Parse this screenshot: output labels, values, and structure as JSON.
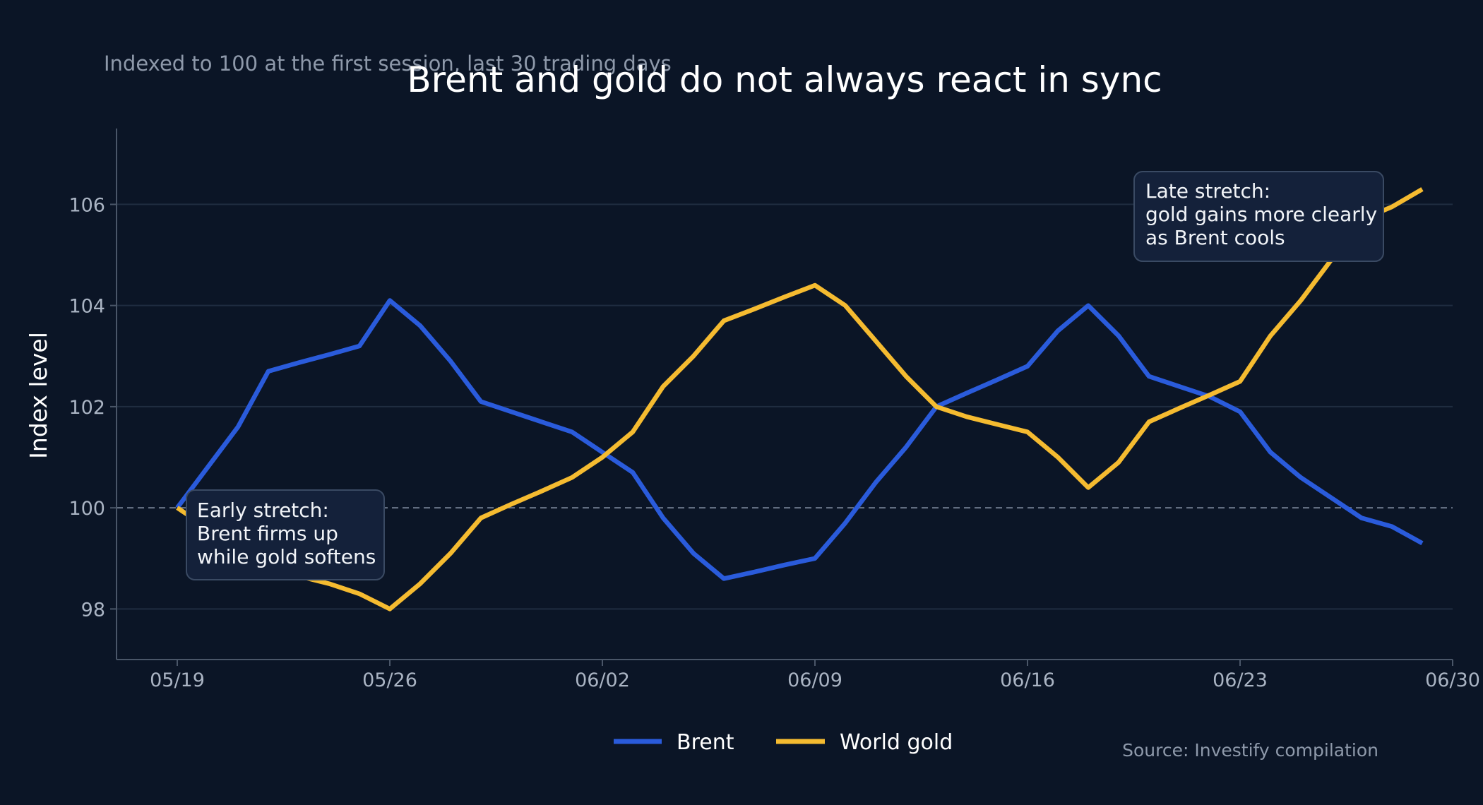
{
  "chart_data": {
    "type": "line",
    "title": "Brent and gold do not always react in sync",
    "subtitle": "Indexed to 100 at the first session, last 30 trading days",
    "ylabel": "Index level",
    "xlabel": "",
    "source": "Source: Investify compilation",
    "ylim": [
      97,
      107.5
    ],
    "xlim": [
      "2025-05-17",
      "2025-06-30"
    ],
    "y_ticks": [
      98,
      100,
      102,
      104,
      106
    ],
    "x_ticks": [
      {
        "date": "2025-05-19",
        "label": "05/19"
      },
      {
        "date": "2025-05-26",
        "label": "05/26"
      },
      {
        "date": "2025-06-02",
        "label": "06/02"
      },
      {
        "date": "2025-06-09",
        "label": "06/09"
      },
      {
        "date": "2025-06-16",
        "label": "06/16"
      },
      {
        "date": "2025-06-23",
        "label": "06/23"
      },
      {
        "date": "2025-06-30",
        "label": "06/30"
      }
    ],
    "reference_line": 100,
    "grid": "horizontal",
    "legend_position": "bottom-center",
    "x": [
      "2025-05-19",
      "2025-05-20",
      "2025-05-21",
      "2025-05-22",
      "2025-05-23",
      "2025-05-24",
      "2025-05-25",
      "2025-05-26",
      "2025-05-27",
      "2025-05-28",
      "2025-05-29",
      "2025-05-30",
      "2025-05-31",
      "2025-06-01",
      "2025-06-02",
      "2025-06-03",
      "2025-06-04",
      "2025-06-05",
      "2025-06-06",
      "2025-06-07",
      "2025-06-08",
      "2025-06-09",
      "2025-06-10",
      "2025-06-11",
      "2025-06-12",
      "2025-06-13",
      "2025-06-14",
      "2025-06-15",
      "2025-06-16",
      "2025-06-17",
      "2025-06-18",
      "2025-06-19",
      "2025-06-20",
      "2025-06-21",
      "2025-06-22",
      "2025-06-23",
      "2025-06-24",
      "2025-06-25",
      "2025-06-26",
      "2025-06-27",
      "2025-06-28",
      "2025-06-29"
    ],
    "series": [
      {
        "name": "Brent",
        "color": "#2a5bdb",
        "values": [
          100.0,
          100.8,
          101.6,
          102.7,
          102.87,
          103.03,
          103.2,
          104.1,
          103.6,
          102.9,
          102.1,
          101.9,
          101.7,
          101.5,
          101.1,
          100.7,
          99.8,
          99.1,
          98.6,
          98.73,
          98.87,
          99.0,
          99.7,
          100.5,
          101.2,
          102.0,
          102.27,
          102.53,
          102.8,
          103.5,
          104.0,
          103.4,
          102.6,
          102.4,
          102.2,
          101.9,
          101.1,
          100.6,
          100.2,
          99.8,
          99.63,
          99.3
        ]
      },
      {
        "name": "World gold",
        "color": "#f5bb30",
        "values": [
          100.0,
          99.6,
          99.2,
          98.8,
          98.65,
          98.5,
          98.3,
          98.0,
          98.5,
          99.1,
          99.8,
          100.07,
          100.33,
          100.6,
          101.0,
          101.5,
          102.4,
          103.0,
          103.7,
          103.93,
          104.17,
          104.4,
          104.0,
          103.3,
          102.6,
          102.0,
          101.8,
          101.65,
          101.5,
          101.0,
          100.4,
          100.9,
          101.7,
          101.97,
          102.23,
          102.5,
          103.4,
          104.1,
          104.9,
          105.7,
          105.95,
          106.3
        ]
      }
    ],
    "annotations": [
      {
        "lines": [
          "Early stretch:",
          "Brent firms up",
          "while gold softens"
        ],
        "anchor_date": "2025-05-19",
        "anchor_value": 100
      },
      {
        "lines": [
          "Late stretch:",
          "gold gains more clearly",
          "as Brent cools"
        ],
        "anchor_date": "2025-06-29",
        "anchor_value": 106.3
      }
    ]
  }
}
